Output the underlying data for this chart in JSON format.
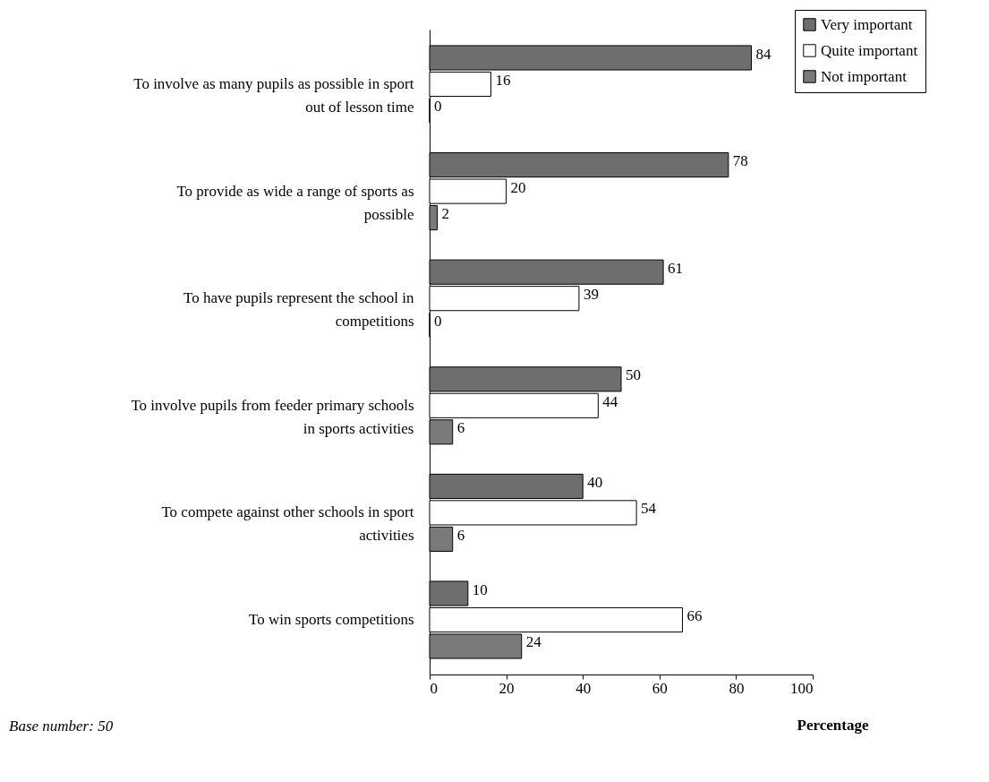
{
  "chart_data": {
    "type": "bar",
    "orientation": "horizontal",
    "xlabel": "Percentage",
    "categories": [
      "To involve as many pupils as possible in sport out of lesson time",
      "To provide as wide a range of sports as possible",
      "To have pupils represent the school in competitions",
      "To involve pupils from feeder primary schools in sports activities",
      "To compete against other schools in sport activities",
      "To win sports competitions"
    ],
    "series": [
      {
        "name": "Very important",
        "color": "#6e6e6e",
        "values": [
          84,
          78,
          61,
          50,
          40,
          10
        ]
      },
      {
        "name": "Quite important",
        "color": "#ffffff",
        "values": [
          16,
          20,
          39,
          44,
          54,
          66
        ]
      },
      {
        "name": "Not important",
        "color": "#7a7a7a",
        "values": [
          0,
          2,
          0,
          6,
          6,
          24
        ]
      }
    ],
    "xlim": [
      0,
      100
    ],
    "xticks": [
      0,
      20,
      40,
      60,
      80,
      100
    ],
    "grid": false,
    "legend": "top right",
    "data_labels": true,
    "annotations": [
      "Base number: 50"
    ]
  }
}
